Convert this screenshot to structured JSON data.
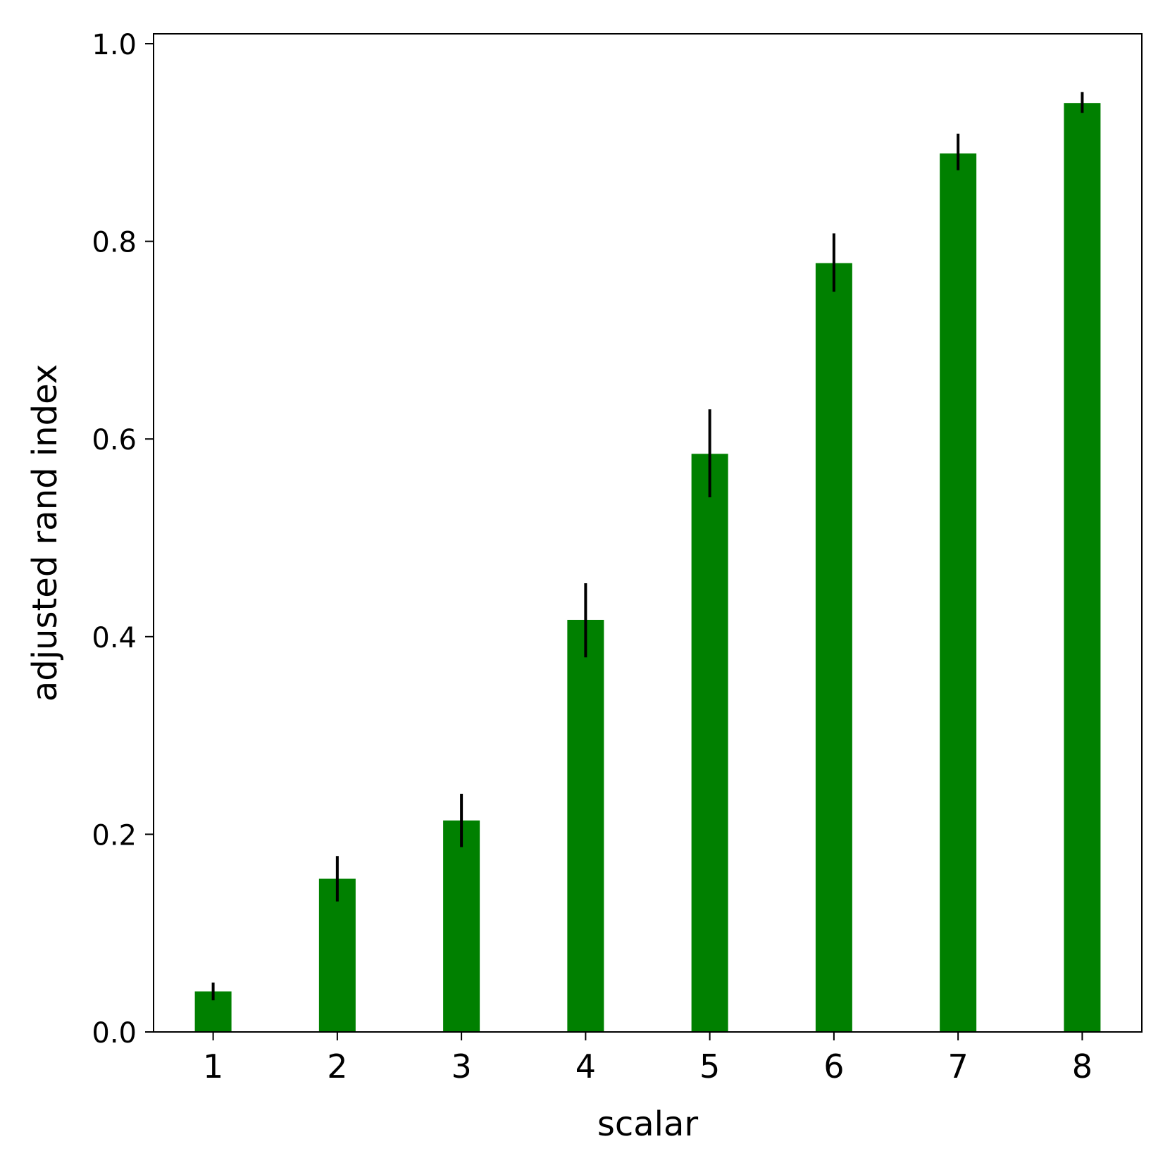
{
  "chart_data": {
    "type": "bar",
    "title": "",
    "xlabel": "scalar",
    "ylabel": "adjusted rand index",
    "categories": [
      "1",
      "2",
      "3",
      "4",
      "5",
      "6",
      "7",
      "8"
    ],
    "values": [
      0.041,
      0.155,
      0.214,
      0.417,
      0.585,
      0.778,
      0.889,
      0.94
    ],
    "error_bars": [
      [
        0.032,
        0.05
      ],
      [
        0.132,
        0.178
      ],
      [
        0.187,
        0.241
      ],
      [
        0.379,
        0.454
      ],
      [
        0.541,
        0.63
      ],
      [
        0.749,
        0.808
      ],
      [
        0.872,
        0.909
      ],
      [
        0.93,
        0.951
      ]
    ],
    "ylim": [
      0,
      1.01
    ],
    "yticks": [
      0.0,
      0.2,
      0.4,
      0.6,
      0.8,
      1.0
    ],
    "ytick_labels": [
      "0.0",
      "0.2",
      "0.4",
      "0.6",
      "0.8",
      "1.0"
    ],
    "grid": false,
    "legend": false,
    "colors": {
      "bar": "#008000",
      "error_bar": "#000000",
      "axis": "#000000",
      "background": "#ffffff"
    }
  }
}
